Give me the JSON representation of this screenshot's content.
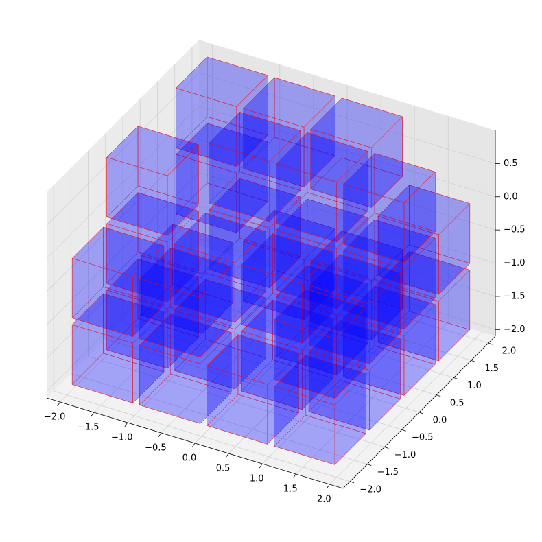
{
  "chart_data": {
    "type": "voxel",
    "xlim": [
      -2.2,
      2.2
    ],
    "ylim": [
      -2.2,
      2.2
    ],
    "zlim": [
      -2.1,
      1.0
    ],
    "xticks": [
      {
        "value": -2.0,
        "label": "−2.0"
      },
      {
        "value": -1.5,
        "label": "−1.5"
      },
      {
        "value": -1.0,
        "label": "−1.0"
      },
      {
        "value": -0.5,
        "label": "−0.5"
      },
      {
        "value": 0.0,
        "label": "0.0"
      },
      0.5,
      {
        "value": 1.0,
        "label": "1.0"
      },
      1.5,
      {
        "value": 2.0,
        "label": "2.0"
      }
    ],
    "yticks": [
      {
        "value": -2.0,
        "label": "−2.0"
      },
      {
        "value": -1.5,
        "label": "−1.5"
      },
      {
        "value": -1.0,
        "label": "−1.0"
      },
      {
        "value": -0.5,
        "label": "−0.5"
      },
      {
        "value": 0.0,
        "label": "0.0"
      },
      0.5,
      {
        "value": 1.0,
        "label": "1.0"
      },
      1.5,
      {
        "value": 2.0,
        "label": "2.0"
      }
    ],
    "zticks": [
      {
        "value": -2.0,
        "label": "−2.0"
      },
      {
        "value": -1.5,
        "label": "−1.5"
      },
      {
        "value": -1.0,
        "label": "−1.0"
      },
      {
        "value": -0.5,
        "label": "−0.5"
      },
      {
        "value": 0.0,
        "label": "0.0"
      },
      0.5
    ],
    "voxel_size": 0.9,
    "color": "#0000ff",
    "edge_color": "#ff0000",
    "grid": true,
    "voxels": [
      {
        "x": -1.5,
        "y": -1.5,
        "z": -1.5
      },
      {
        "x": -0.5,
        "y": -1.5,
        "z": -1.5
      },
      {
        "x": 0.5,
        "y": -1.5,
        "z": -1.5
      },
      {
        "x": 1.5,
        "y": -1.5,
        "z": -1.5
      },
      {
        "x": -1.5,
        "y": -0.5,
        "z": -1.5
      },
      {
        "x": -0.5,
        "y": -0.5,
        "z": -1.5
      },
      {
        "x": 0.5,
        "y": -0.5,
        "z": -1.5
      },
      {
        "x": 1.5,
        "y": -0.5,
        "z": -1.5
      },
      {
        "x": -1.5,
        "y": 0.5,
        "z": -1.5
      },
      {
        "x": 0.5,
        "y": 0.5,
        "z": -1.5
      },
      {
        "x": 1.5,
        "y": 0.5,
        "z": -1.5
      },
      {
        "x": -0.5,
        "y": 1.5,
        "z": -1.5
      },
      {
        "x": 0.5,
        "y": 1.5,
        "z": -1.5
      },
      {
        "x": 1.5,
        "y": 1.5,
        "z": -1.5
      },
      {
        "x": -1.5,
        "y": -1.5,
        "z": -0.5
      },
      {
        "x": -0.5,
        "y": -1.5,
        "z": -0.5
      },
      {
        "x": 1.5,
        "y": -1.5,
        "z": -0.5
      },
      {
        "x": -1.5,
        "y": -0.5,
        "z": -0.5
      },
      {
        "x": -0.5,
        "y": -0.5,
        "z": -0.5
      },
      {
        "x": 0.5,
        "y": -0.5,
        "z": -0.5
      },
      {
        "x": 1.5,
        "y": -0.5,
        "z": -0.5
      },
      {
        "x": -0.5,
        "y": 0.5,
        "z": -0.5
      },
      {
        "x": 0.5,
        "y": 0.5,
        "z": -0.5
      },
      {
        "x": 1.5,
        "y": 0.5,
        "z": -0.5
      },
      {
        "x": -1.5,
        "y": 1.5,
        "z": -0.5
      },
      {
        "x": 1.5,
        "y": 1.5,
        "z": -0.5
      },
      {
        "x": -1.5,
        "y": -0.5,
        "z": 0.5
      },
      {
        "x": -0.5,
        "y": 0.5,
        "z": 0.5
      },
      {
        "x": 0.5,
        "y": 0.5,
        "z": 0.5
      },
      {
        "x": -1.5,
        "y": 1.5,
        "z": 0.5
      },
      {
        "x": -0.5,
        "y": 1.5,
        "z": 0.5
      },
      {
        "x": 0.5,
        "y": 1.5,
        "z": 0.5
      },
      {
        "x": 1.5,
        "y": 0.5,
        "z": 0.5
      }
    ]
  }
}
